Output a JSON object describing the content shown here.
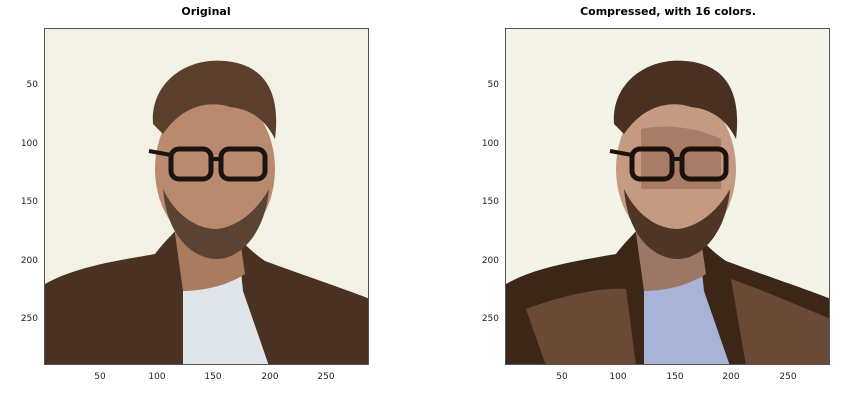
{
  "panels": [
    {
      "title": "Original",
      "xticks": [
        "50",
        "100",
        "150",
        "200",
        "250"
      ],
      "yticks": [
        "50",
        "100",
        "150",
        "200",
        "250"
      ]
    },
    {
      "title": "Compressed, with 16 colors.",
      "xticks": [
        "50",
        "100",
        "150",
        "200",
        "250"
      ],
      "yticks": [
        "50",
        "100",
        "150",
        "200",
        "250"
      ]
    }
  ],
  "colors": {
    "background": "#f3f1e6",
    "jacket": "#4a3121",
    "shirt_original": "#dfe3ea",
    "shirt_compressed": "#a9b3d8",
    "skin": "#b98a6e",
    "hair": "#5a3f2c",
    "glasses": "#1a1412"
  }
}
